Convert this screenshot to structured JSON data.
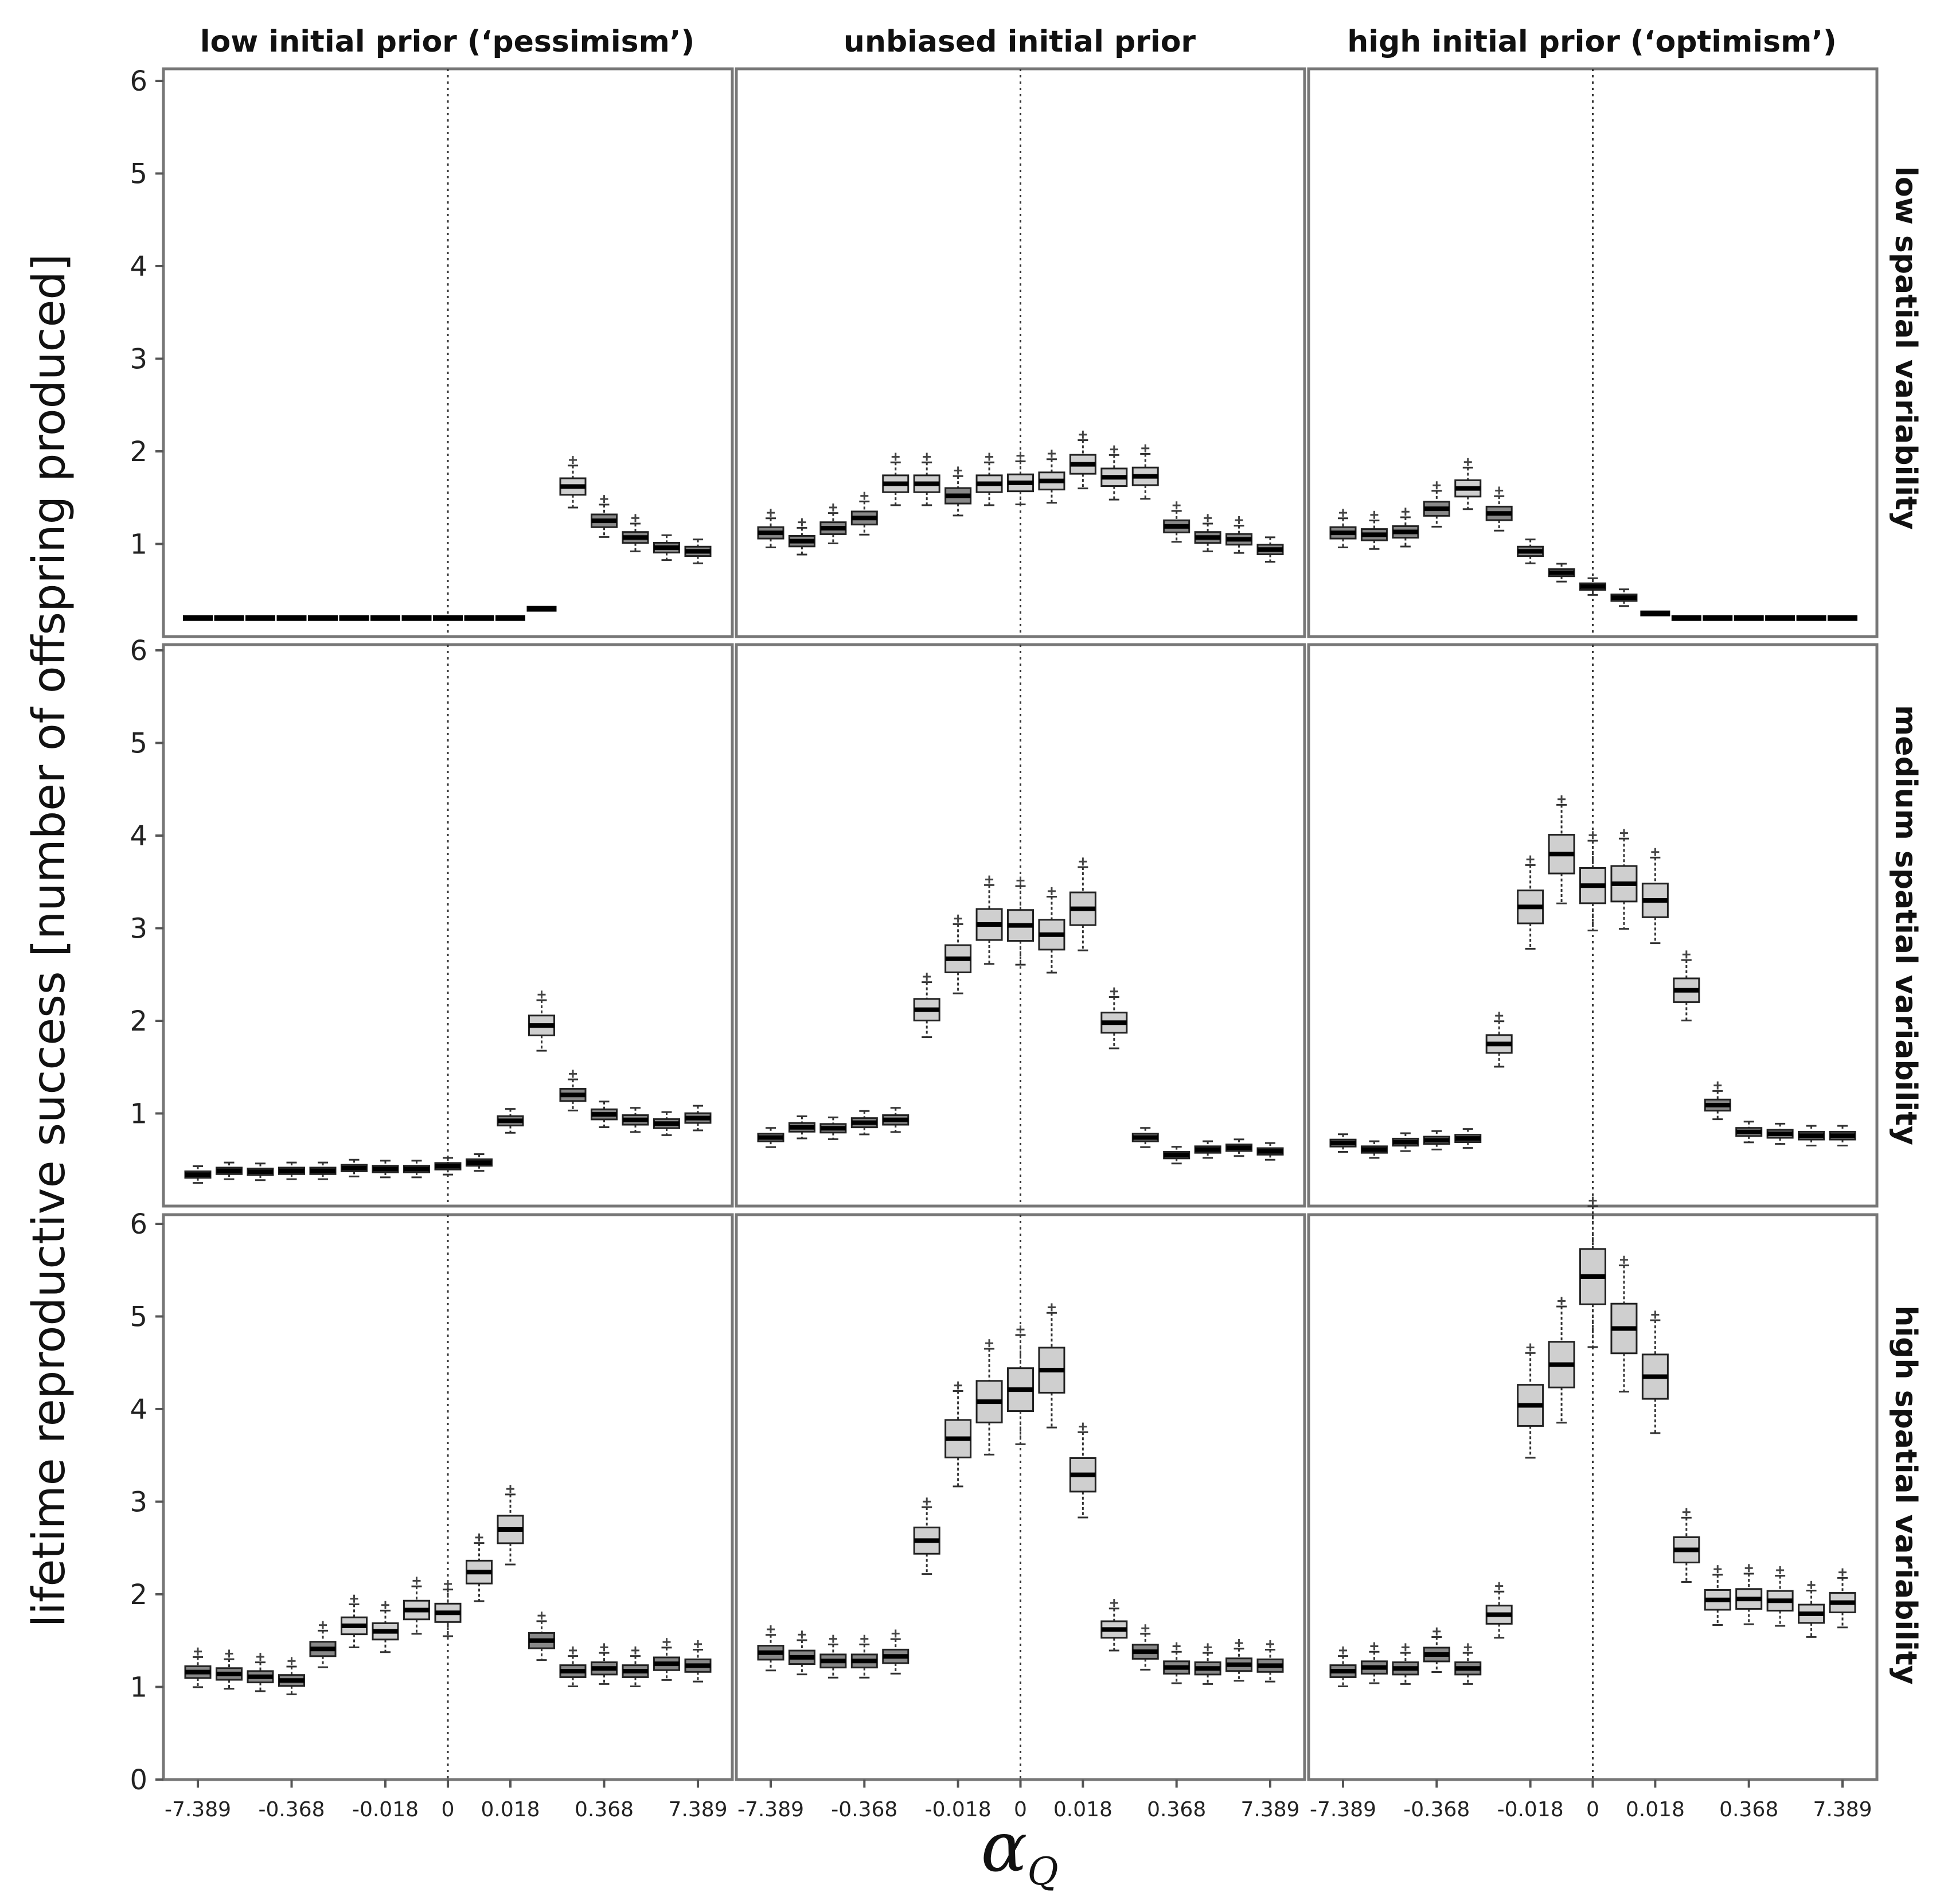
{
  "chart_data": {
    "type": "boxplot-grid",
    "ylabel": "lifetime reproductive success [number of offspring produced]",
    "xlabel": "α",
    "xlabel_subscript": "Q",
    "column_titles": [
      "low initial prior (‘pessimism’)",
      "unbiased initial prior",
      "high initial prior (‘optimism’)"
    ],
    "row_titles": [
      "low spatial variability",
      "medium spatial variability",
      "high spatial variability"
    ],
    "x_tick_labels": [
      "-7.389",
      "-0.368",
      "-0.018",
      "0",
      "0.018",
      "0.368",
      "7.389"
    ],
    "x_tick_positions": [
      1,
      4,
      7,
      9,
      11,
      14,
      17
    ],
    "y_ticks": [
      0,
      1,
      2,
      3,
      4,
      5,
      6
    ],
    "ylim": [
      0,
      6.2
    ],
    "n_groups": 17,
    "grid": false,
    "reference_line": "dotted vertical at α = 0",
    "panels": [
      {
        "row": 0,
        "col": 0,
        "medians": [
          0.2,
          0.2,
          0.2,
          0.2,
          0.2,
          0.2,
          0.2,
          0.2,
          0.2,
          0.2,
          0.2,
          0.3,
          1.62,
          1.25,
          1.07,
          0.96,
          0.92
        ]
      },
      {
        "row": 0,
        "col": 1,
        "medians": [
          1.12,
          1.03,
          1.17,
          1.28,
          1.65,
          1.65,
          1.52,
          1.65,
          1.66,
          1.68,
          1.86,
          1.72,
          1.73,
          1.19,
          1.07,
          1.05,
          0.94
        ]
      },
      {
        "row": 0,
        "col": 2,
        "medians": [
          1.12,
          1.1,
          1.13,
          1.38,
          1.6,
          1.33,
          0.92,
          0.69,
          0.54,
          0.42,
          0.25,
          0.2,
          0.2,
          0.2,
          0.2,
          0.2,
          0.2
        ]
      },
      {
        "row": 1,
        "col": 0,
        "medians": [
          0.34,
          0.38,
          0.37,
          0.38,
          0.38,
          0.41,
          0.4,
          0.4,
          0.43,
          0.47,
          0.92,
          1.95,
          1.2,
          0.99,
          0.93,
          0.89,
          0.95
        ]
      },
      {
        "row": 1,
        "col": 1,
        "medians": [
          0.74,
          0.85,
          0.84,
          0.9,
          0.93,
          2.12,
          2.67,
          3.04,
          3.03,
          2.93,
          3.21,
          1.98,
          0.74,
          0.55,
          0.61,
          0.63,
          0.59
        ]
      },
      {
        "row": 1,
        "col": 2,
        "medians": [
          0.68,
          0.61,
          0.69,
          0.71,
          0.73,
          1.75,
          3.23,
          3.8,
          3.46,
          3.48,
          3.3,
          2.33,
          1.09,
          0.8,
          0.78,
          0.76,
          0.76
        ]
      },
      {
        "row": 2,
        "col": 0,
        "medians": [
          1.16,
          1.14,
          1.11,
          1.07,
          1.41,
          1.66,
          1.6,
          1.83,
          1.8,
          2.24,
          2.7,
          1.5,
          1.17,
          1.2,
          1.17,
          1.25,
          1.23
        ]
      },
      {
        "row": 2,
        "col": 1,
        "medians": [
          1.37,
          1.32,
          1.28,
          1.28,
          1.33,
          2.58,
          3.68,
          4.08,
          4.21,
          4.42,
          3.29,
          1.62,
          1.38,
          1.21,
          1.2,
          1.24,
          1.23
        ]
      },
      {
        "row": 2,
        "col": 2,
        "medians": [
          1.17,
          1.21,
          1.2,
          1.35,
          1.2,
          1.78,
          4.04,
          4.48,
          5.43,
          4.87,
          4.35,
          2.48,
          1.94,
          1.95,
          1.93,
          1.79,
          1.91
        ]
      }
    ]
  }
}
